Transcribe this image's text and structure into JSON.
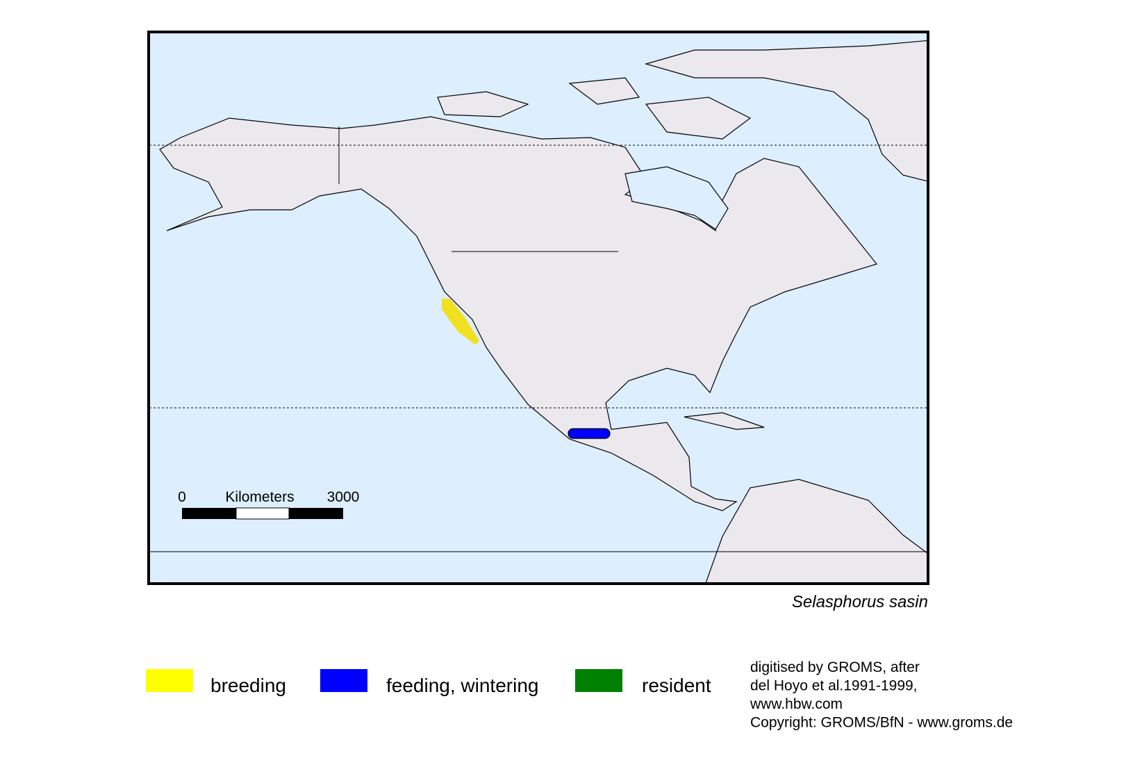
{
  "map": {
    "scale_bar": {
      "start": "0",
      "unit": "Kilometers",
      "end": "3000"
    },
    "species": "Selasphorus sasin",
    "legend": [
      {
        "label": "breeding",
        "color": "#ffff00"
      },
      {
        "label": "feeding, wintering",
        "color": "#0000ff"
      },
      {
        "label": "resident",
        "color": "#008000"
      }
    ],
    "credits": [
      "digitised by GROMS, after",
      "del Hoyo et al.1991-1999,",
      "www.hbw.com",
      "Copyright: GROMS/BfN - www.groms.de"
    ]
  }
}
